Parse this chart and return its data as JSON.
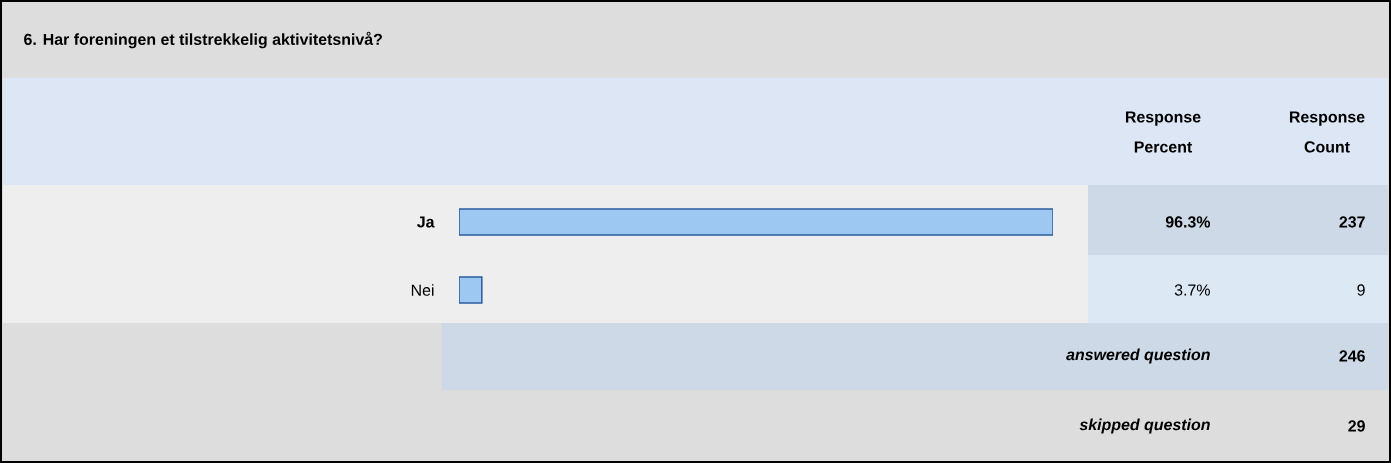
{
  "chart_data": {
    "type": "bar",
    "orientation": "horizontal",
    "title": "6. Har foreningen et tilstrekkelig aktivitetsnivå?",
    "categories": [
      "Ja",
      "Nei"
    ],
    "values": [
      96.3,
      3.7
    ],
    "value_labels": [
      "96.3%",
      "3.7%"
    ],
    "color": "#9cc8f2",
    "annotations": [
      "Response Percent",
      "Response Count",
      "237",
      "9",
      "answered question",
      "246",
      "skipped question",
      "29"
    ]
  }
}
